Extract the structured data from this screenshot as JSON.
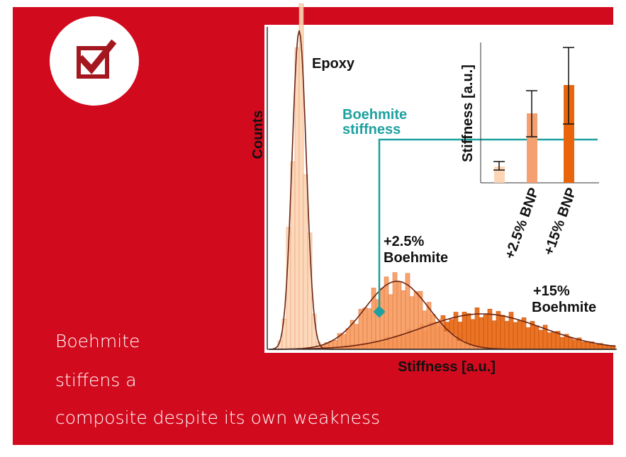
{
  "figure": {
    "epoxy_label": "Epoxy",
    "y_axis_label": "Counts",
    "x_axis_label": "Stiffness [a.u.]",
    "boehmite_stiffness_label": [
      "Boehmite",
      "stiffness"
    ],
    "label_2_5": [
      "+2.5%",
      "Boehmite"
    ],
    "label_15": [
      "+15%",
      "Boehmite"
    ],
    "inset": {
      "y_axis_label": "Stiffness [a.u.]",
      "categories": [
        "+2.5% BNP",
        "+15% BNP"
      ]
    }
  },
  "caption": [
    "Boehmite",
    "stiffens a",
    "composite despite its own weakness"
  ]
}
